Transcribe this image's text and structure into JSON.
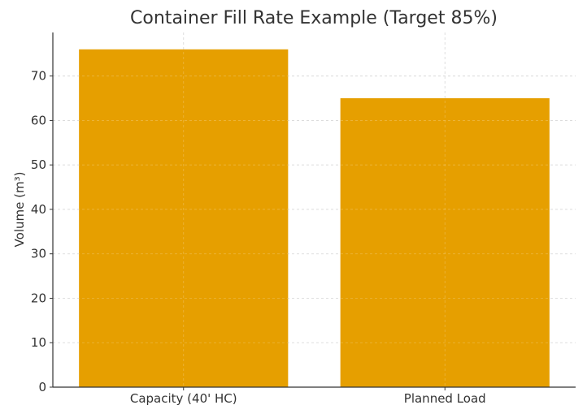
{
  "chart_data": {
    "type": "bar",
    "title": "Container Fill Rate Example (Target 85%)",
    "xlabel": "",
    "ylabel": "Volume (m³)",
    "categories": [
      "Capacity (40' HC)",
      "Planned Load"
    ],
    "values": [
      76,
      65
    ],
    "ylim": [
      0,
      80
    ],
    "yticks": [
      0,
      10,
      20,
      30,
      40,
      50,
      60,
      70
    ],
    "grid": true,
    "legend": null,
    "bar_color": "#E69F00"
  }
}
